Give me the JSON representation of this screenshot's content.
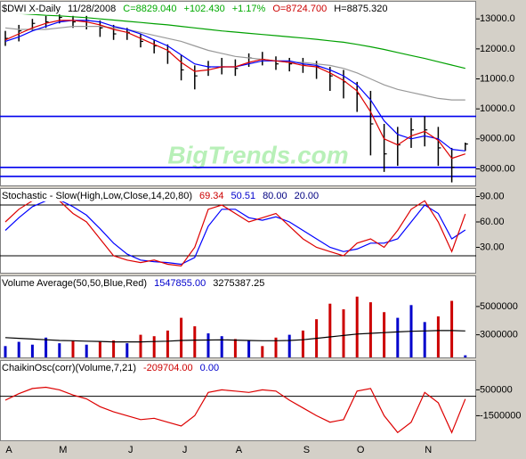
{
  "chart_data": [
    {
      "type": "ohlc",
      "title_parts": [
        {
          "text": "$DWI X-Daily",
          "color": "#000000"
        },
        {
          "text": "11/28/2008",
          "color": "#000000"
        },
        {
          "text": "C=8829.040",
          "color": "#00aa00"
        },
        {
          "text": "+102.430",
          "color": "#00aa00"
        },
        {
          "text": "+1.17%",
          "color": "#00aa00"
        },
        {
          "text": "O=8724.700",
          "color": "#cc0000"
        },
        {
          "text": "H=8875.320",
          "color": "#000000"
        }
      ],
      "watermark": "BigTrends.com",
      "ylim": [
        7450,
        13600
      ],
      "yticks": [
        {
          "value": 13000,
          "label": "13000.0"
        },
        {
          "value": 12000,
          "label": "12000.0"
        },
        {
          "value": 11000,
          "label": "11000.0"
        },
        {
          "value": 10000,
          "label": "10000.0"
        },
        {
          "value": 9000,
          "label": "9000.00"
        },
        {
          "value": 8000,
          "label": "8000.00"
        }
      ],
      "reference_lines": [
        9750,
        8050,
        7750
      ],
      "reference_color": "#0000ee",
      "bar_color": "#000000",
      "high": [
        12600,
        12800,
        13000,
        13100,
        13150,
        13100,
        13100,
        12950,
        12800,
        12700,
        12500,
        12300,
        12150,
        11800,
        11450,
        11600,
        11700,
        11650,
        11850,
        11900,
        11750,
        11700,
        11700,
        11600,
        11400,
        11300,
        10900,
        10600,
        9500,
        9400,
        9700,
        9750,
        9400,
        8700,
        8875.32
      ],
      "low": [
        12100,
        12250,
        12600,
        12700,
        12850,
        12700,
        12650,
        12400,
        12300,
        12300,
        12050,
        11850,
        11500,
        10950,
        10650,
        11100,
        11150,
        11100,
        11400,
        11450,
        11300,
        11250,
        11200,
        11000,
        10600,
        10350,
        9900,
        8450,
        7900,
        8100,
        8700,
        8750,
        8100,
        7550,
        8600
      ],
      "close": [
        12350,
        12600,
        12850,
        12900,
        13050,
        12900,
        12950,
        12700,
        12500,
        12550,
        12250,
        12100,
        11900,
        11300,
        11100,
        11400,
        11400,
        11350,
        11700,
        11650,
        11500,
        11500,
        11450,
        11400,
        11100,
        10900,
        10500,
        9500,
        8500,
        8800,
        9300,
        9300,
        8700,
        8050,
        8829.04
      ],
      "series": [
        {
          "color": "#999999",
          "values": [
            12700,
            12650,
            12650,
            12650,
            12700,
            12750,
            12750,
            12750,
            12700,
            12650,
            12550,
            12450,
            12350,
            12250,
            12100,
            11950,
            11850,
            11750,
            11700,
            11650,
            11600,
            11550,
            11550,
            11500,
            11450,
            11350,
            11200,
            11000,
            10800,
            10650,
            10550,
            10450,
            10350,
            10300,
            10300
          ]
        },
        {
          "color": "#00a000",
          "values": [
            13200,
            13180,
            13150,
            13120,
            13100,
            13070,
            13040,
            13000,
            12960,
            12920,
            12880,
            12840,
            12800,
            12750,
            12700,
            12650,
            12600,
            12560,
            12520,
            12480,
            12440,
            12400,
            12360,
            12320,
            12270,
            12220,
            12150,
            12070,
            11980,
            11880,
            11780,
            11680,
            11570,
            11460,
            11350
          ]
        },
        {
          "color": "#0000ff",
          "values": [
            12250,
            12400,
            12600,
            12750,
            12900,
            12950,
            12950,
            12900,
            12750,
            12650,
            12500,
            12300,
            12100,
            11800,
            11500,
            11400,
            11400,
            11400,
            11500,
            11600,
            11600,
            11600,
            11500,
            11450,
            11300,
            11100,
            10800,
            10300,
            9600,
            9150,
            9000,
            9100,
            9000,
            8650,
            8600
          ]
        },
        {
          "color": "#dd0000",
          "values": [
            12300,
            12500,
            12700,
            12850,
            12950,
            12950,
            12900,
            12800,
            12650,
            12550,
            12350,
            12150,
            11950,
            11550,
            11250,
            11300,
            11400,
            11400,
            11550,
            11650,
            11600,
            11550,
            11450,
            11400,
            11200,
            10950,
            10600,
            9900,
            9000,
            8800,
            9100,
            9250,
            8950,
            8350,
            8500
          ]
        }
      ]
    },
    {
      "type": "line",
      "title_parts": [
        {
          "text": "Stochastic - Slow(High,Low,Close,14,20,80)",
          "color": "#000000"
        },
        {
          "text": "69.34",
          "color": "#cc0000"
        },
        {
          "text": "50.51",
          "color": "#0000cc"
        },
        {
          "text": "80.00",
          "color": "#000080"
        },
        {
          "text": "20.00",
          "color": "#000080"
        }
      ],
      "ylim": [
        0,
        100
      ],
      "yticks": [
        {
          "value": 90,
          "label": "90.00"
        },
        {
          "value": 60,
          "label": "60.00"
        },
        {
          "value": 30,
          "label": "30.00"
        }
      ],
      "reference_lines": [
        80,
        20
      ],
      "reference_color": "#000000",
      "series": [
        {
          "color": "#0000ff",
          "values": [
            50,
            65,
            78,
            85,
            86,
            78,
            68,
            52,
            35,
            22,
            15,
            13,
            12,
            10,
            18,
            55,
            75,
            75,
            65,
            62,
            66,
            60,
            50,
            40,
            30,
            25,
            28,
            35,
            35,
            40,
            60,
            80,
            70,
            40,
            50.51
          ]
        },
        {
          "color": "#dd0000",
          "values": [
            60,
            75,
            85,
            88,
            85,
            70,
            60,
            40,
            20,
            15,
            12,
            15,
            10,
            8,
            30,
            75,
            80,
            70,
            60,
            65,
            70,
            55,
            40,
            30,
            25,
            20,
            35,
            40,
            30,
            50,
            75,
            85,
            60,
            25,
            69.34
          ]
        }
      ]
    },
    {
      "type": "bar",
      "title_parts": [
        {
          "text": "Volume Average(50,50,Blue,Red)",
          "color": "#000000"
        },
        {
          "text": "1547855.00",
          "color": "#0000cc"
        },
        {
          "text": "3275387.25",
          "color": "#000000"
        }
      ],
      "ylim": [
        1400000,
        7200000
      ],
      "yticks": [
        5000000,
        3000000
      ],
      "values": [
        2200000,
        2500000,
        2300000,
        2800000,
        2400000,
        2600000,
        2300000,
        2500000,
        2600000,
        2400000,
        3000000,
        2900000,
        3300000,
        4200000,
        3600000,
        3100000,
        2900000,
        2700000,
        2600000,
        2200000,
        2800000,
        3000000,
        3300000,
        4100000,
        5200000,
        4800000,
        5700000,
        5300000,
        4600000,
        4200000,
        5100000,
        3900000,
        4300000,
        5400000,
        1547855
      ],
      "colors": [
        "#0000cc",
        "#0000cc",
        "#0000cc",
        "#0000cc",
        "#0000cc",
        "#cc0000",
        "#0000cc",
        "#cc0000",
        "#cc0000",
        "#0000cc",
        "#cc0000",
        "#cc0000",
        "#cc0000",
        "#cc0000",
        "#cc0000",
        "#0000cc",
        "#0000cc",
        "#cc0000",
        "#0000cc",
        "#cc0000",
        "#cc0000",
        "#0000cc",
        "#cc0000",
        "#cc0000",
        "#cc0000",
        "#cc0000",
        "#cc0000",
        "#cc0000",
        "#cc0000",
        "#0000cc",
        "#0000cc",
        "#0000cc",
        "#cc0000",
        "#cc0000",
        "#0000cc"
      ],
      "series": [
        {
          "color": "#000000",
          "values": [
            2800000,
            2750000,
            2700000,
            2650000,
            2600000,
            2580000,
            2550000,
            2530000,
            2500000,
            2500000,
            2500000,
            2520000,
            2550000,
            2600000,
            2620000,
            2630000,
            2640000,
            2620000,
            2600000,
            2580000,
            2580000,
            2600000,
            2650000,
            2750000,
            2850000,
            2950000,
            3050000,
            3100000,
            3150000,
            3200000,
            3250000,
            3270000,
            3300000,
            3300000,
            3275387.25
          ]
        }
      ]
    },
    {
      "type": "line",
      "title_parts": [
        {
          "text": "ChaikinOsc(corr)(Volume,7,21)",
          "color": "#000000"
        },
        {
          "text": "-209704.00",
          "color": "#cc0000"
        },
        {
          "text": "0.00",
          "color": "#0000cc"
        }
      ],
      "ylim": [
        -3400000,
        2800000
      ],
      "yticks": [
        500000,
        -1500000
      ],
      "reference_lines": [
        0
      ],
      "reference_color": "#000000",
      "categories": [
        "A",
        null,
        null,
        null,
        "M",
        null,
        null,
        null,
        null,
        "J",
        null,
        null,
        null,
        "J",
        null,
        null,
        null,
        "A",
        null,
        null,
        null,
        null,
        "S",
        null,
        null,
        null,
        "O",
        null,
        null,
        null,
        null,
        "N",
        null,
        null,
        null
      ],
      "series": [
        {
          "color": "#dd0000",
          "values": [
            -300000,
            200000,
            600000,
            700000,
            500000,
            100000,
            -200000,
            -800000,
            -1200000,
            -1500000,
            -1800000,
            -1700000,
            -2000000,
            -2300000,
            -1500000,
            300000,
            500000,
            400000,
            300000,
            500000,
            400000,
            -300000,
            -900000,
            -1500000,
            -2000000,
            -1800000,
            400000,
            600000,
            -1500000,
            -2800000,
            -2000000,
            300000,
            -500000,
            -2800000,
            -209704
          ]
        }
      ]
    }
  ]
}
